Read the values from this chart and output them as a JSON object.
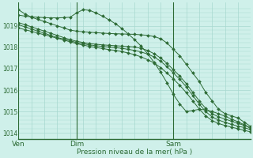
{
  "bg_color": "#cff0ea",
  "plot_bg_color": "#cff0ea",
  "grid_color": "#a8d8d0",
  "line_color": "#2d6b35",
  "xlabel": "Pression niveau de la mer( hPa )",
  "ylim": [
    1013.7,
    1020.1
  ],
  "yticks": [
    1014,
    1015,
    1016,
    1017,
    1018,
    1019
  ],
  "xtick_labels": [
    "Ven",
    "Dim",
    "Sam"
  ],
  "xtick_positions": [
    0,
    9,
    24
  ],
  "total_points": 37,
  "series": [
    [
      1019.75,
      1019.55,
      1019.4,
      1019.3,
      1019.2,
      1019.1,
      1019.0,
      1018.9,
      1018.8,
      1018.75,
      1018.72,
      1018.7,
      1018.68,
      1018.66,
      1018.64,
      1018.63,
      1018.62,
      1018.61,
      1018.6,
      1018.58,
      1018.55,
      1018.5,
      1018.4,
      1018.2,
      1017.9,
      1017.6,
      1017.2,
      1016.8,
      1016.4,
      1015.9,
      1015.5,
      1015.1,
      1014.9,
      1014.8,
      1014.7,
      1014.5,
      1014.3
    ],
    [
      1019.15,
      1019.05,
      1018.95,
      1018.85,
      1018.75,
      1018.65,
      1018.55,
      1018.45,
      1018.35,
      1018.28,
      1018.22,
      1018.17,
      1018.14,
      1018.11,
      1018.09,
      1018.07,
      1018.05,
      1018.03,
      1018.01,
      1017.95,
      1017.85,
      1017.7,
      1017.5,
      1017.25,
      1016.95,
      1016.65,
      1016.3,
      1015.9,
      1015.5,
      1015.15,
      1014.9,
      1014.75,
      1014.65,
      1014.55,
      1014.45,
      1014.35,
      1014.25
    ],
    [
      1019.05,
      1018.95,
      1018.85,
      1018.75,
      1018.65,
      1018.55,
      1018.45,
      1018.38,
      1018.3,
      1018.22,
      1018.16,
      1018.11,
      1018.07,
      1018.04,
      1018.01,
      1017.98,
      1017.95,
      1017.9,
      1017.85,
      1017.78,
      1017.68,
      1017.55,
      1017.35,
      1017.1,
      1016.8,
      1016.5,
      1016.15,
      1015.75,
      1015.35,
      1015.0,
      1014.75,
      1014.6,
      1014.5,
      1014.4,
      1014.32,
      1014.25,
      1014.15
    ],
    [
      1018.9,
      1018.82,
      1018.74,
      1018.66,
      1018.58,
      1018.5,
      1018.42,
      1018.34,
      1018.25,
      1018.17,
      1018.1,
      1018.04,
      1017.99,
      1017.94,
      1017.89,
      1017.85,
      1017.8,
      1017.73,
      1017.65,
      1017.55,
      1017.42,
      1017.27,
      1017.05,
      1016.8,
      1016.52,
      1016.22,
      1015.88,
      1015.5,
      1015.12,
      1014.8,
      1014.58,
      1014.44,
      1014.35,
      1014.27,
      1014.2,
      1014.12,
      1014.05
    ],
    [
      1019.5,
      1019.45,
      1019.42,
      1019.4,
      1019.38,
      1019.37,
      1019.37,
      1019.38,
      1019.4,
      1019.6,
      1019.75,
      1019.72,
      1019.6,
      1019.45,
      1019.28,
      1019.1,
      1018.88,
      1018.62,
      1018.35,
      1018.05,
      1017.7,
      1017.3,
      1016.85,
      1016.35,
      1015.8,
      1015.35,
      1015.0,
      1015.05,
      1015.1,
      1015.08,
      1015.0,
      1014.9,
      1014.78,
      1014.65,
      1014.52,
      1014.38,
      1014.2
    ]
  ]
}
